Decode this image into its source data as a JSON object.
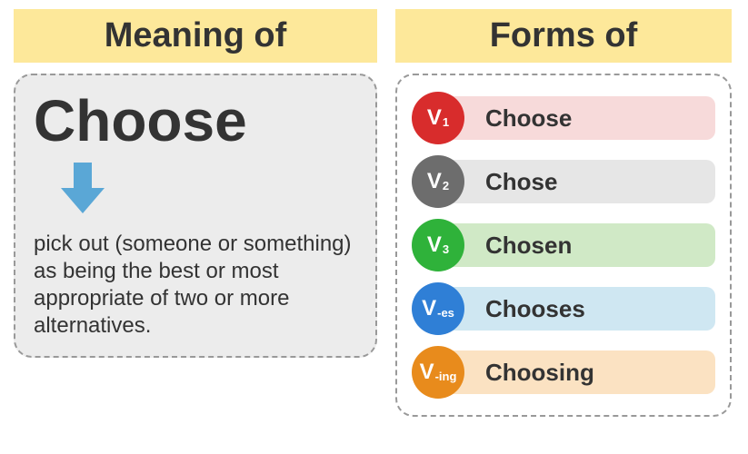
{
  "colors": {
    "header_bg": "#fde89a",
    "text_dark": "#333333",
    "arrow_fill": "#5aa7d6",
    "card_bg_left": "#ececec",
    "card_bg_right": "#ffffff"
  },
  "typography": {
    "header_fontsize": 38,
    "word_fontsize": 64,
    "definition_fontsize": 24,
    "form_word_fontsize": 26
  },
  "meaning": {
    "header": "Meaning of",
    "word": "Choose",
    "definition": "pick out (someone or something) as being the best or most appropriate of two or more alternatives."
  },
  "forms": {
    "header": "Forms of",
    "rows": [
      {
        "badge_main": "V",
        "badge_sub": "1",
        "word": "Choose",
        "badge_color": "#d82c2c",
        "pill_color": "#f7dada"
      },
      {
        "badge_main": "V",
        "badge_sub": "2",
        "word": "Chose",
        "badge_color": "#6d6d6d",
        "pill_color": "#e6e6e6"
      },
      {
        "badge_main": "V",
        "badge_sub": "3",
        "word": "Chosen",
        "badge_color": "#2fb23a",
        "pill_color": "#d0e9c6"
      },
      {
        "badge_main": "V",
        "badge_sub": "-es",
        "word": "Chooses",
        "badge_color": "#2f7fd6",
        "pill_color": "#cfe7f2"
      },
      {
        "badge_main": "V",
        "badge_sub": "-ing",
        "word": "Choosing",
        "badge_color": "#e88b1c",
        "pill_color": "#fbe2c2"
      }
    ]
  }
}
